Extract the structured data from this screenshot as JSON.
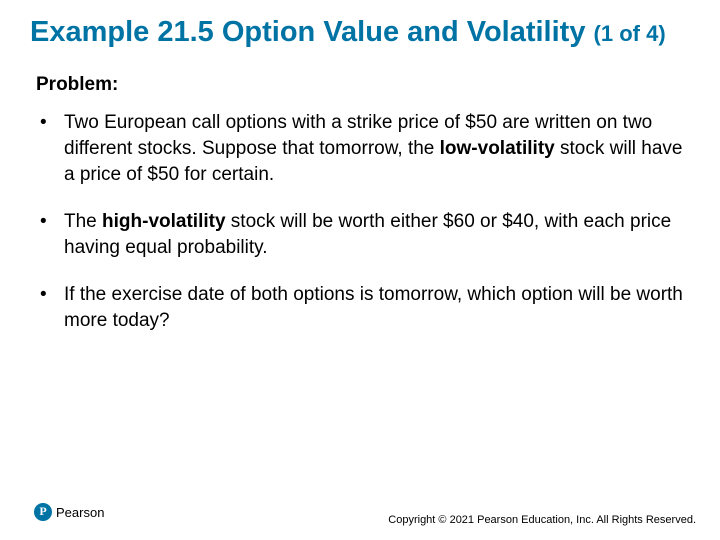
{
  "colors": {
    "title_color": "#0073a5",
    "text_color": "#000000",
    "background": "#ffffff",
    "logo_circle": "#0073a5"
  },
  "typography": {
    "title_fontsize_pt": 22,
    "subtitle_fontsize_pt": 17,
    "body_fontsize_pt": 14,
    "footer_fontsize_pt": 8,
    "font_family": "Arial"
  },
  "title": {
    "main": "Example 21.5 Option Value and Volatility",
    "part": "(1 of 4)"
  },
  "problem_label": "Problem:",
  "bullets": [
    {
      "pre": "Two European call options with a strike price of $50 are written on two different stocks. Suppose that tomorrow, the ",
      "bold": "low-volatility",
      "post": " stock will have a price of $50 for certain."
    },
    {
      "pre": "The ",
      "bold": "high-volatility",
      "post": " stock will be worth either $60 or $40, with each price having equal probability."
    },
    {
      "pre": "If the exercise date of both options is tomorrow, which option will be worth more today?",
      "bold": "",
      "post": ""
    }
  ],
  "footer": {
    "brand": "Pearson",
    "copyright": "Copyright © 2021 Pearson Education, Inc. All Rights Reserved."
  }
}
